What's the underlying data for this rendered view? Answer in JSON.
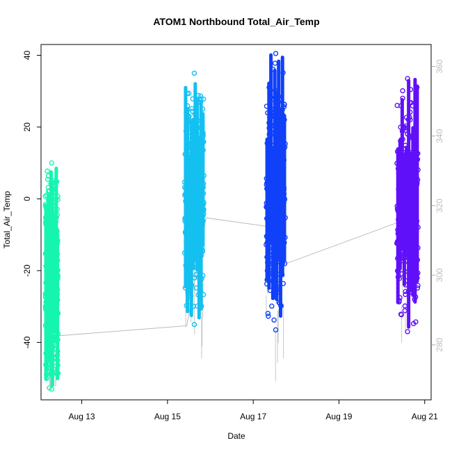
{
  "chart_data": {
    "type": "scatter",
    "title": "ATOM1 Northbound Total_Air_Temp",
    "xlabel": "Date",
    "ylabel": "Total_Air_Temp",
    "x_unit": "date (August)",
    "xlim": [
      12.05,
      21.15
    ],
    "ylim": [
      -56,
      43
    ],
    "y2lim": [
      264.2,
      366.3
    ],
    "x_ticks": [
      {
        "value": 13,
        "label": "Aug 13"
      },
      {
        "value": 15,
        "label": "Aug 15"
      },
      {
        "value": 17,
        "label": "Aug 17"
      },
      {
        "value": 19,
        "label": "Aug 19"
      },
      {
        "value": 21,
        "label": "Aug 21"
      }
    ],
    "y_ticks": [
      {
        "value": -40,
        "label": "-40"
      },
      {
        "value": -20,
        "label": "-20"
      },
      {
        "value": 0,
        "label": "0"
      },
      {
        "value": 20,
        "label": "20"
      },
      {
        "value": 40,
        "label": "40"
      }
    ],
    "y2_ticks": [
      {
        "value": 280,
        "label": "280"
      },
      {
        "value": 300,
        "label": "300"
      },
      {
        "value": 320,
        "label": "320"
      },
      {
        "value": 340,
        "label": "340"
      },
      {
        "value": 360,
        "label": "360"
      }
    ],
    "series": [
      {
        "color": "#16f5b0",
        "x_range": [
          12.15,
          12.45
        ],
        "y_min": -53,
        "y_max": 10
      },
      {
        "color": "#14c0f0",
        "x_range": [
          15.4,
          15.85
        ],
        "y_min": -35,
        "y_max": 35
      },
      {
        "color": "#1040f8",
        "x_range": [
          17.3,
          17.75
        ],
        "y_min": -36.5,
        "y_max": 40.5
      },
      {
        "color": "#6010f8",
        "x_range": [
          20.35,
          20.85
        ],
        "y_min": -37,
        "y_max": 33.5
      }
    ],
    "secondary_line": {
      "color": "#bbbbbb",
      "points": [
        {
          "x": 12.35,
          "y2": 282.5
        },
        {
          "x": 15.45,
          "y2": 285.5
        },
        {
          "x": 15.9,
          "y2": 316.5
        },
        {
          "x": 17.35,
          "y2": 314.0
        },
        {
          "x": 17.8,
          "y2": 303.5
        },
        {
          "x": 20.45,
          "y2": 315.5
        }
      ]
    },
    "grid": false,
    "legend": "none"
  }
}
